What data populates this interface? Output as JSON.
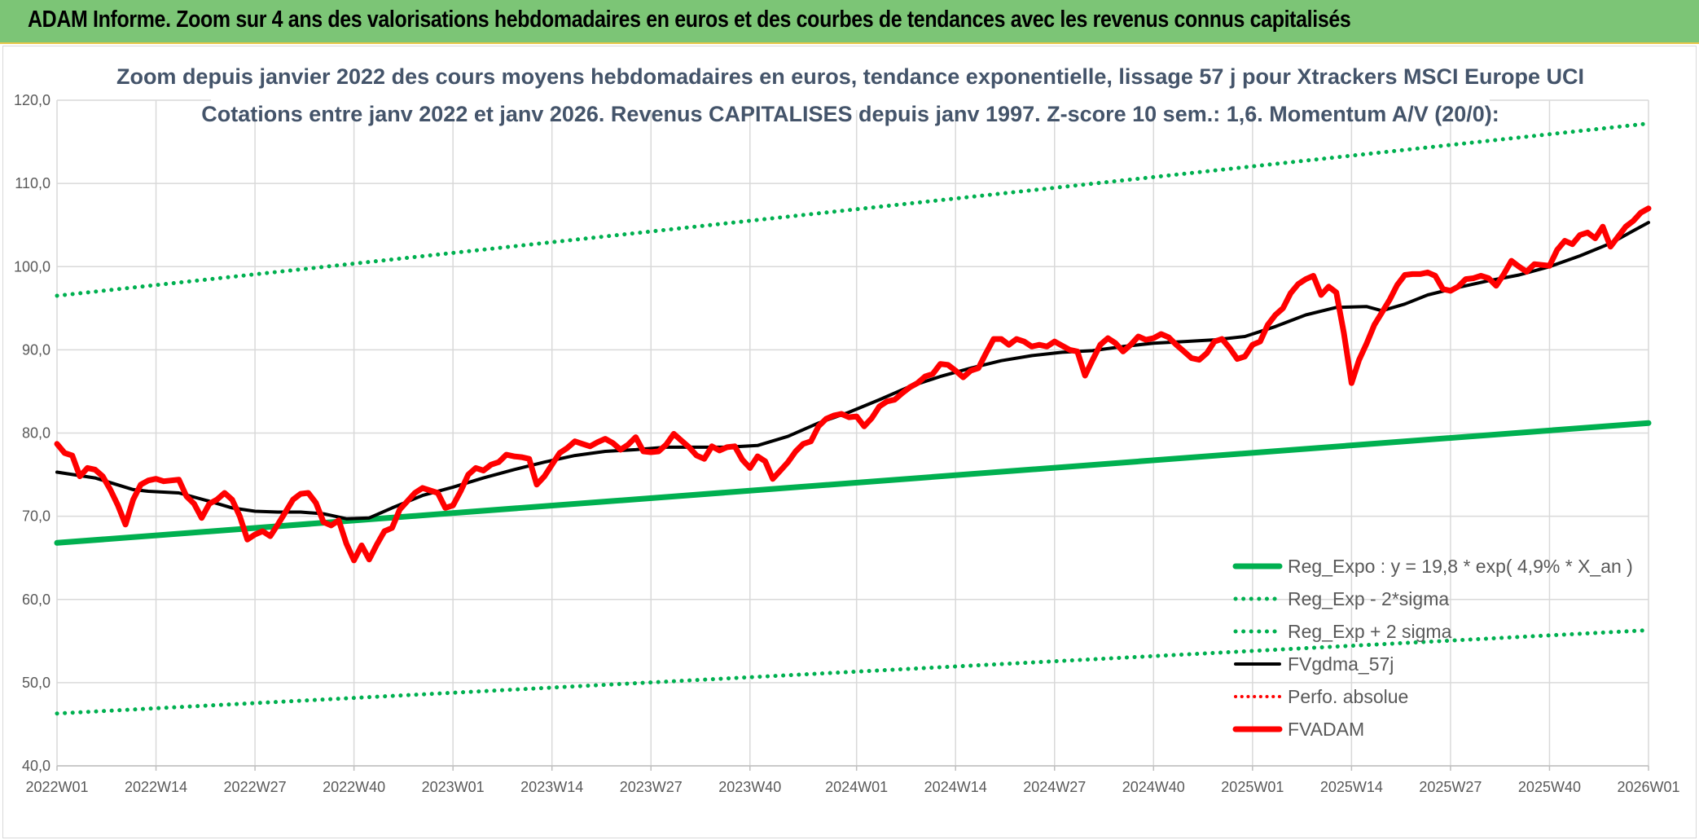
{
  "header": {
    "title": "ADAM Informe. Zoom sur 4 ans des valorisations hebdomadaires en euros et des courbes de tendances avec les revenus connus capitalisés"
  },
  "chart_data": {
    "type": "line",
    "title_lines": [
      "Zoom depuis janvier 2022 des cours moyens hebdomadaires en euros, tendance exponentielle, lissage 57 j pour Xtrackers MSCI Europe UCI",
      "Cotations entre janv 2022 et janv 2026. Revenus CAPITALISES depuis janv 1997. Z-score 10 sem.: 1,6. Momentum A/V (20/0):"
    ],
    "xlabel": "",
    "ylabel": "",
    "ylim": [
      40,
      120
    ],
    "y_ticks": [
      "40,0",
      "50,0",
      "60,0",
      "70,0",
      "80,0",
      "90,0",
      "100,0",
      "110,0",
      "120,0"
    ],
    "x_range": [
      0,
      209
    ],
    "x_ticks": [
      {
        "x": 0,
        "label": "2022W01"
      },
      {
        "x": 13,
        "label": "2022W14"
      },
      {
        "x": 26,
        "label": "2022W27"
      },
      {
        "x": 39,
        "label": "2022W40"
      },
      {
        "x": 52,
        "label": "2023W01"
      },
      {
        "x": 65,
        "label": "2023W14"
      },
      {
        "x": 78,
        "label": "2023W27"
      },
      {
        "x": 91,
        "label": "2023W40"
      },
      {
        "x": 105,
        "label": "2024W01"
      },
      {
        "x": 118,
        "label": "2024W14"
      },
      {
        "x": 131,
        "label": "2024W27"
      },
      {
        "x": 144,
        "label": "2024W40"
      },
      {
        "x": 157,
        "label": "2025W01"
      },
      {
        "x": 170,
        "label": "2025W14"
      },
      {
        "x": 183,
        "label": "2025W27"
      },
      {
        "x": 196,
        "label": "2025W40"
      },
      {
        "x": 209,
        "label": "2026W01"
      }
    ],
    "grid": true,
    "legend_position": "bottom-right",
    "series": [
      {
        "name": "Reg_Expo : y = 19,8 * exp( 4,9% *  X_an )",
        "color": "#00b050",
        "style": "solid",
        "width": 7,
        "points": [
          [
            0,
            66.8
          ],
          [
            209,
            81.2
          ]
        ]
      },
      {
        "name": "Reg_Exp - 2*sigma",
        "color": "#00b050",
        "style": "dotted",
        "width": 5,
        "points": [
          [
            0,
            46.3
          ],
          [
            209,
            56.3
          ]
        ]
      },
      {
        "name": "Reg_Exp + 2 sigma",
        "color": "#00b050",
        "style": "dotted",
        "width": 5,
        "points": [
          [
            0,
            96.5
          ],
          [
            209,
            117.2
          ]
        ]
      },
      {
        "name": "FVgdma_57j",
        "color": "#000000",
        "style": "solid",
        "width": 4,
        "points": [
          [
            0,
            75.3
          ],
          [
            5,
            74.6
          ],
          [
            10,
            73.2
          ],
          [
            12,
            73.0
          ],
          [
            16,
            72.8
          ],
          [
            20,
            71.8
          ],
          [
            23,
            71.0
          ],
          [
            26,
            70.6
          ],
          [
            29,
            70.5
          ],
          [
            32,
            70.5
          ],
          [
            35,
            70.3
          ],
          [
            38,
            69.7
          ],
          [
            41,
            69.8
          ],
          [
            44,
            71.0
          ],
          [
            48,
            72.5
          ],
          [
            52,
            73.5
          ],
          [
            56,
            74.6
          ],
          [
            60,
            75.6
          ],
          [
            64,
            76.5
          ],
          [
            68,
            77.3
          ],
          [
            72,
            77.8
          ],
          [
            76,
            78.0
          ],
          [
            80,
            78.3
          ],
          [
            84,
            78.3
          ],
          [
            88,
            78.3
          ],
          [
            92,
            78.5
          ],
          [
            96,
            79.6
          ],
          [
            100,
            81.2
          ],
          [
            104,
            82.5
          ],
          [
            108,
            84.0
          ],
          [
            112,
            85.6
          ],
          [
            116,
            86.8
          ],
          [
            120,
            87.8
          ],
          [
            124,
            88.7
          ],
          [
            128,
            89.3
          ],
          [
            132,
            89.7
          ],
          [
            136,
            89.9
          ],
          [
            140,
            90.4
          ],
          [
            144,
            90.8
          ],
          [
            148,
            91.0
          ],
          [
            152,
            91.2
          ],
          [
            156,
            91.6
          ],
          [
            160,
            92.8
          ],
          [
            164,
            94.2
          ],
          [
            168,
            95.1
          ],
          [
            172,
            95.2
          ],
          [
            174,
            94.7
          ],
          [
            177,
            95.5
          ],
          [
            180,
            96.6
          ],
          [
            184,
            97.5
          ],
          [
            188,
            98.3
          ],
          [
            192,
            99.0
          ],
          [
            196,
            100.0
          ],
          [
            200,
            101.3
          ],
          [
            204,
            102.8
          ],
          [
            207,
            104.3
          ],
          [
            209,
            105.3
          ]
        ]
      },
      {
        "name": "Perfo. absolue",
        "color": "#ff0000",
        "style": "dotted",
        "width": 4,
        "points": []
      },
      {
        "name": "FVADAM",
        "color": "#ff0000",
        "style": "solid",
        "width": 7,
        "points": [
          [
            0,
            78.7
          ],
          [
            1,
            77.6
          ],
          [
            2,
            77.3
          ],
          [
            3,
            74.8
          ],
          [
            4,
            75.8
          ],
          [
            5,
            75.6
          ],
          [
            6,
            74.8
          ],
          [
            7,
            73.2
          ],
          [
            8,
            71.3
          ],
          [
            9,
            69.0
          ],
          [
            10,
            72.0
          ],
          [
            11,
            73.8
          ],
          [
            12,
            74.3
          ],
          [
            13,
            74.5
          ],
          [
            14,
            74.2
          ],
          [
            15,
            74.3
          ],
          [
            16,
            74.4
          ],
          [
            17,
            72.4
          ],
          [
            18,
            71.5
          ],
          [
            19,
            69.8
          ],
          [
            20,
            71.5
          ],
          [
            21,
            72.0
          ],
          [
            22,
            72.8
          ],
          [
            23,
            72.0
          ],
          [
            24,
            70.0
          ],
          [
            25,
            67.2
          ],
          [
            26,
            67.8
          ],
          [
            27,
            68.2
          ],
          [
            28,
            67.6
          ],
          [
            29,
            69.0
          ],
          [
            30,
            70.5
          ],
          [
            31,
            72.0
          ],
          [
            32,
            72.7
          ],
          [
            33,
            72.8
          ],
          [
            34,
            71.6
          ],
          [
            35,
            69.3
          ],
          [
            36,
            68.9
          ],
          [
            37,
            69.5
          ],
          [
            38,
            66.7
          ],
          [
            39,
            64.7
          ],
          [
            40,
            66.5
          ],
          [
            41,
            64.8
          ],
          [
            42,
            66.6
          ],
          [
            43,
            68.2
          ],
          [
            44,
            68.6
          ],
          [
            45,
            70.8
          ],
          [
            46,
            71.8
          ],
          [
            47,
            72.8
          ],
          [
            48,
            73.4
          ],
          [
            49,
            73.1
          ],
          [
            50,
            72.8
          ],
          [
            51,
            71.0
          ],
          [
            52,
            71.3
          ],
          [
            53,
            73.0
          ],
          [
            54,
            75.0
          ],
          [
            55,
            75.8
          ],
          [
            56,
            75.5
          ],
          [
            57,
            76.2
          ],
          [
            58,
            76.5
          ],
          [
            59,
            77.4
          ],
          [
            60,
            77.2
          ],
          [
            61,
            77.1
          ],
          [
            62,
            76.9
          ],
          [
            63,
            73.8
          ],
          [
            64,
            74.8
          ],
          [
            65,
            76.2
          ],
          [
            66,
            77.6
          ],
          [
            67,
            78.2
          ],
          [
            68,
            79.0
          ],
          [
            69,
            78.7
          ],
          [
            70,
            78.4
          ],
          [
            71,
            78.9
          ],
          [
            72,
            79.3
          ],
          [
            73,
            78.8
          ],
          [
            74,
            78.0
          ],
          [
            75,
            78.6
          ],
          [
            76,
            79.5
          ],
          [
            77,
            77.8
          ],
          [
            78,
            77.7
          ],
          [
            79,
            77.8
          ],
          [
            80,
            78.6
          ],
          [
            81,
            79.9
          ],
          [
            82,
            79.1
          ],
          [
            83,
            78.3
          ],
          [
            84,
            77.3
          ],
          [
            85,
            76.9
          ],
          [
            86,
            78.4
          ],
          [
            87,
            77.9
          ],
          [
            88,
            78.3
          ],
          [
            89,
            78.4
          ],
          [
            90,
            76.8
          ],
          [
            91,
            75.8
          ],
          [
            92,
            77.2
          ],
          [
            93,
            76.6
          ],
          [
            94,
            74.5
          ],
          [
            95,
            75.5
          ],
          [
            96,
            76.5
          ],
          [
            97,
            77.8
          ],
          [
            98,
            78.7
          ],
          [
            99,
            79.0
          ],
          [
            100,
            80.8
          ],
          [
            101,
            81.7
          ],
          [
            102,
            82.1
          ],
          [
            103,
            82.3
          ],
          [
            104,
            81.9
          ],
          [
            105,
            82.0
          ],
          [
            106,
            80.8
          ],
          [
            107,
            81.8
          ],
          [
            108,
            83.2
          ],
          [
            109,
            83.8
          ],
          [
            110,
            84.0
          ],
          [
            111,
            84.8
          ],
          [
            112,
            85.5
          ],
          [
            113,
            86.0
          ],
          [
            114,
            86.8
          ],
          [
            115,
            87.1
          ],
          [
            116,
            88.3
          ],
          [
            117,
            88.2
          ],
          [
            118,
            87.5
          ],
          [
            119,
            86.7
          ],
          [
            120,
            87.5
          ],
          [
            121,
            87.8
          ],
          [
            122,
            89.6
          ],
          [
            123,
            91.3
          ],
          [
            124,
            91.3
          ],
          [
            125,
            90.6
          ],
          [
            126,
            91.3
          ],
          [
            127,
            91.0
          ],
          [
            128,
            90.4
          ],
          [
            129,
            90.6
          ],
          [
            130,
            90.4
          ],
          [
            131,
            91.0
          ],
          [
            132,
            90.5
          ],
          [
            133,
            90.0
          ],
          [
            134,
            89.8
          ],
          [
            135,
            86.9
          ],
          [
            136,
            88.8
          ],
          [
            137,
            90.6
          ],
          [
            138,
            91.4
          ],
          [
            139,
            90.8
          ],
          [
            140,
            89.8
          ],
          [
            141,
            90.6
          ],
          [
            142,
            91.6
          ],
          [
            143,
            91.2
          ],
          [
            144,
            91.4
          ],
          [
            145,
            91.9
          ],
          [
            146,
            91.5
          ],
          [
            147,
            90.6
          ],
          [
            148,
            89.8
          ],
          [
            149,
            89.0
          ],
          [
            150,
            88.8
          ],
          [
            151,
            89.6
          ],
          [
            152,
            91.0
          ],
          [
            153,
            91.3
          ],
          [
            154,
            90.2
          ],
          [
            155,
            88.9
          ],
          [
            156,
            89.2
          ],
          [
            157,
            90.6
          ],
          [
            158,
            91.0
          ],
          [
            159,
            93.0
          ],
          [
            160,
            94.2
          ],
          [
            161,
            95.0
          ],
          [
            162,
            96.8
          ],
          [
            163,
            97.9
          ],
          [
            164,
            98.5
          ],
          [
            165,
            98.9
          ],
          [
            166,
            96.6
          ],
          [
            167,
            97.6
          ],
          [
            168,
            96.9
          ],
          [
            169,
            92.0
          ],
          [
            170,
            86.0
          ],
          [
            171,
            88.8
          ],
          [
            172,
            90.8
          ],
          [
            173,
            93.0
          ],
          [
            174,
            94.5
          ],
          [
            175,
            96.0
          ],
          [
            176,
            97.8
          ],
          [
            177,
            99.0
          ],
          [
            178,
            99.1
          ],
          [
            179,
            99.1
          ],
          [
            180,
            99.3
          ],
          [
            181,
            98.9
          ],
          [
            182,
            97.3
          ],
          [
            183,
            97.1
          ],
          [
            184,
            97.6
          ],
          [
            185,
            98.5
          ],
          [
            186,
            98.6
          ],
          [
            187,
            98.9
          ],
          [
            188,
            98.6
          ],
          [
            189,
            97.7
          ],
          [
            190,
            99.1
          ],
          [
            191,
            100.7
          ],
          [
            192,
            100.0
          ],
          [
            193,
            99.4
          ],
          [
            194,
            100.3
          ],
          [
            195,
            100.2
          ],
          [
            196,
            100.1
          ],
          [
            197,
            102.0
          ],
          [
            198,
            103.1
          ],
          [
            199,
            102.7
          ],
          [
            200,
            103.8
          ],
          [
            201,
            104.1
          ],
          [
            202,
            103.4
          ],
          [
            203,
            104.8
          ],
          [
            204,
            102.4
          ],
          [
            205,
            103.6
          ],
          [
            206,
            104.8
          ],
          [
            207,
            105.5
          ],
          [
            208,
            106.5
          ],
          [
            209,
            107.0
          ]
        ]
      }
    ]
  }
}
